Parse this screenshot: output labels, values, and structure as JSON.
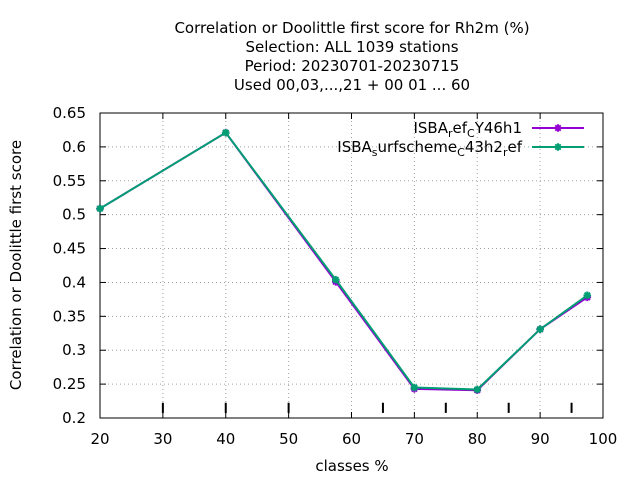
{
  "chart_data": {
    "type": "line",
    "title": [
      "Correlation or Doolittle first score  for Rh2m (%)",
      "Selection: ALL   1039 stations",
      "Period: 20230701-20230715",
      "Used  00,03,...,21  + 00 01 ... 60"
    ],
    "xlabel": "classes %",
    "ylabel": "Correlation or Doolittle first score",
    "xlim": [
      20,
      100
    ],
    "ylim": [
      0.2,
      0.65
    ],
    "xticks": [
      20,
      30,
      40,
      50,
      60,
      70,
      80,
      90,
      100
    ],
    "yticks": [
      0.2,
      0.25,
      0.3,
      0.35,
      0.4,
      0.45,
      0.5,
      0.55,
      0.6,
      0.65
    ],
    "ytick_labels": [
      "0.2",
      "0.25",
      "0.3",
      "0.35",
      "0.4",
      "0.45",
      "0.5",
      "0.55",
      "0.6",
      "0.65"
    ],
    "grid": true,
    "legend_position": "top-right",
    "class_markers": [
      30,
      40,
      50,
      65,
      75,
      85,
      95
    ],
    "series": [
      {
        "name": "ISBA_ref_CY46h1",
        "legend_parts": [
          [
            "ISBA",
            ""
          ],
          [
            "r",
            "sub"
          ],
          [
            "ef",
            ""
          ],
          [
            "C",
            "sub"
          ],
          [
            "Y46h1",
            ""
          ]
        ],
        "color": "#9400d3",
        "x": [
          20,
          40,
          57.5,
          70,
          80,
          90,
          97.5
        ],
        "y": [
          0.509,
          0.621,
          0.401,
          0.243,
          0.241,
          0.331,
          0.378
        ]
      },
      {
        "name": "ISBA_surfscheme_C43h2_ref",
        "legend_parts": [
          [
            "ISBA",
            ""
          ],
          [
            "s",
            "sub"
          ],
          [
            "urfscheme",
            ""
          ],
          [
            "C",
            "sub"
          ],
          [
            "43h2",
            ""
          ],
          [
            "r",
            "sub"
          ],
          [
            "ef",
            ""
          ]
        ],
        "color": "#009e73",
        "x": [
          20,
          40,
          57.5,
          70,
          80,
          90,
          97.5
        ],
        "y": [
          0.509,
          0.621,
          0.404,
          0.245,
          0.242,
          0.331,
          0.381
        ]
      }
    ]
  }
}
